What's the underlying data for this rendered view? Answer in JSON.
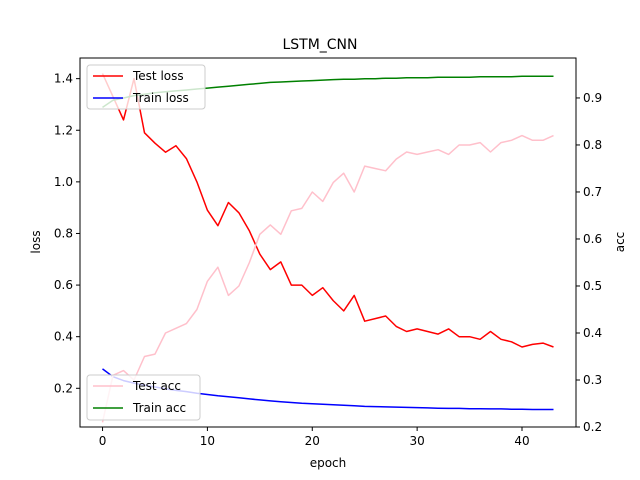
{
  "chart_data": {
    "type": "line",
    "title": "LSTM_CNN",
    "xlabel": "epoch",
    "ylabel": "loss",
    "y2label": "acc",
    "xlim": [
      -2.15,
      45.15
    ],
    "ylim": [
      0.05,
      1.48
    ],
    "y2lim": [
      0.2,
      0.985
    ],
    "xticks": [
      0,
      10,
      20,
      30,
      40
    ],
    "yticks": [
      0.2,
      0.4,
      0.6,
      0.8,
      1.0,
      1.2,
      1.4
    ],
    "yticklabels": [
      "0.2",
      "0.4",
      "0.6",
      "0.8",
      "1.0",
      "1.2",
      "1.4"
    ],
    "y2ticks": [
      0.2,
      0.3,
      0.4,
      0.5,
      0.6,
      0.7,
      0.8,
      0.9
    ],
    "y2ticklabels": [
      "0.2",
      "0.3",
      "0.4",
      "0.5",
      "0.6",
      "0.7",
      "0.8",
      "0.9"
    ],
    "grid": false,
    "x": [
      0,
      1,
      2,
      3,
      4,
      5,
      6,
      7,
      8,
      9,
      10,
      11,
      12,
      13,
      14,
      15,
      16,
      17,
      18,
      19,
      20,
      21,
      22,
      23,
      24,
      25,
      26,
      27,
      28,
      29,
      30,
      31,
      32,
      33,
      34,
      35,
      36,
      37,
      38,
      39,
      40,
      41,
      42,
      43
    ],
    "legends": [
      {
        "location": "upper-left",
        "entries": [
          "Test loss",
          "Train loss"
        ]
      },
      {
        "location": "lower-left",
        "entries": [
          "Test acc",
          "Train acc"
        ]
      }
    ],
    "series": [
      {
        "name": "Test loss",
        "axis": "left",
        "color": "#ff0000",
        "values": [
          1.42,
          1.33,
          1.24,
          1.4,
          1.19,
          1.15,
          1.115,
          1.14,
          1.09,
          1.0,
          0.89,
          0.83,
          0.92,
          0.88,
          0.81,
          0.72,
          0.66,
          0.69,
          0.6,
          0.6,
          0.56,
          0.59,
          0.54,
          0.5,
          0.56,
          0.46,
          0.47,
          0.48,
          0.44,
          0.42,
          0.43,
          0.42,
          0.41,
          0.43,
          0.4,
          0.4,
          0.39,
          0.42,
          0.39,
          0.38,
          0.36,
          0.37,
          0.375,
          0.36
        ]
      },
      {
        "name": "Train loss",
        "axis": "left",
        "color": "#0000ff",
        "values": [
          0.275,
          0.245,
          0.23,
          0.22,
          0.212,
          0.205,
          0.198,
          0.192,
          0.187,
          0.181,
          0.176,
          0.171,
          0.167,
          0.163,
          0.159,
          0.155,
          0.151,
          0.148,
          0.145,
          0.142,
          0.14,
          0.138,
          0.136,
          0.134,
          0.132,
          0.13,
          0.129,
          0.128,
          0.127,
          0.126,
          0.125,
          0.124,
          0.123,
          0.122,
          0.122,
          0.121,
          0.121,
          0.12,
          0.12,
          0.119,
          0.119,
          0.118,
          0.118,
          0.118
        ]
      },
      {
        "name": "Test acc",
        "axis": "right",
        "color": "#ffc0cb",
        "values": [
          0.21,
          0.31,
          0.32,
          0.3,
          0.35,
          0.355,
          0.4,
          0.41,
          0.42,
          0.45,
          0.51,
          0.54,
          0.48,
          0.5,
          0.55,
          0.61,
          0.63,
          0.61,
          0.66,
          0.665,
          0.7,
          0.68,
          0.72,
          0.74,
          0.7,
          0.755,
          0.75,
          0.745,
          0.77,
          0.785,
          0.78,
          0.785,
          0.79,
          0.78,
          0.8,
          0.8,
          0.805,
          0.785,
          0.805,
          0.81,
          0.82,
          0.81,
          0.81,
          0.82
        ]
      },
      {
        "name": "Train acc",
        "axis": "right",
        "color": "#008000",
        "values": [
          0.88,
          0.895,
          0.9,
          0.905,
          0.908,
          0.911,
          0.913,
          0.915,
          0.917,
          0.919,
          0.921,
          0.923,
          0.925,
          0.927,
          0.929,
          0.931,
          0.933,
          0.934,
          0.935,
          0.936,
          0.937,
          0.938,
          0.939,
          0.94,
          0.94,
          0.941,
          0.941,
          0.942,
          0.942,
          0.943,
          0.943,
          0.943,
          0.944,
          0.944,
          0.944,
          0.944,
          0.945,
          0.945,
          0.945,
          0.945,
          0.946,
          0.946,
          0.946,
          0.946
        ]
      }
    ]
  }
}
